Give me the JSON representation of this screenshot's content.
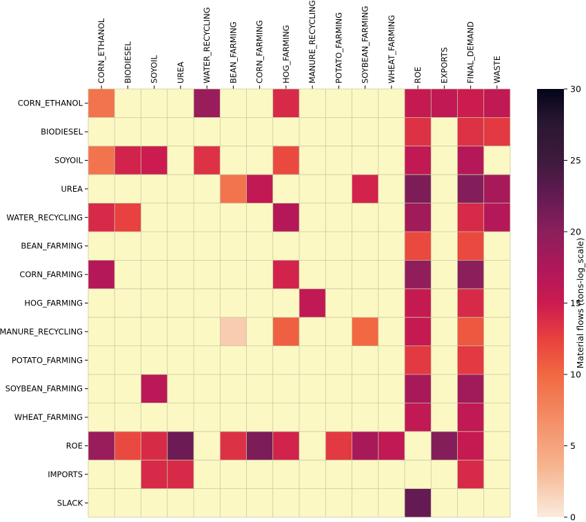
{
  "chart_data": {
    "type": "heatmap",
    "title": "",
    "xlabel": "",
    "ylabel": "",
    "columns": [
      "CORN_ETHANOL",
      "BIODIESEL",
      "SOYOIL",
      "UREA",
      "WATER_RECYCLING",
      "BEAN_FARMING",
      "CORN_FARMING",
      "HOG_FARMING",
      "MANURE_RECYCLING",
      "POTATO_FARMING",
      "SOYBEAN_FARMING",
      "WHEAT_FARMING",
      "ROE",
      "EXPORTS",
      "FINAL_DEMAND",
      "WASTE"
    ],
    "rows": [
      "CORN_ETHANOL",
      "BIODIESEL",
      "SOYOIL",
      "UREA",
      "WATER_RECYCLING",
      "BEAN_FARMING",
      "CORN_FARMING",
      "HOG_FARMING",
      "MANURE_RECYCLING",
      "POTATO_FARMING",
      "SOYBEAN_FARMING",
      "WHEAT_FARMING",
      "ROE",
      "IMPORTS",
      "SLACK"
    ],
    "values": [
      [
        9,
        null,
        null,
        null,
        19,
        null,
        null,
        14,
        null,
        null,
        null,
        null,
        15.5,
        16,
        15,
        16
      ],
      [
        null,
        null,
        null,
        null,
        null,
        null,
        null,
        null,
        null,
        null,
        null,
        null,
        13.5,
        null,
        13.5,
        13
      ],
      [
        9,
        14.5,
        15,
        null,
        13.5,
        null,
        null,
        12,
        null,
        null,
        null,
        null,
        16,
        null,
        17,
        null
      ],
      [
        null,
        null,
        null,
        null,
        null,
        9,
        16,
        null,
        null,
        null,
        14.5,
        null,
        21,
        null,
        20.5,
        18
      ],
      [
        14,
        12.5,
        null,
        null,
        null,
        null,
        null,
        17,
        null,
        null,
        null,
        null,
        18.5,
        null,
        14,
        17
      ],
      [
        null,
        null,
        null,
        null,
        null,
        null,
        null,
        null,
        null,
        null,
        null,
        null,
        12,
        null,
        12,
        null
      ],
      [
        17,
        null,
        null,
        null,
        null,
        null,
        null,
        14.5,
        null,
        null,
        null,
        null,
        19.5,
        null,
        20,
        null
      ],
      [
        null,
        null,
        null,
        null,
        null,
        null,
        null,
        null,
        16,
        null,
        null,
        null,
        15.5,
        null,
        14,
        null
      ],
      [
        null,
        null,
        null,
        null,
        null,
        2,
        null,
        10.5,
        null,
        null,
        10,
        null,
        15.5,
        null,
        11,
        null
      ],
      [
        null,
        null,
        null,
        null,
        null,
        null,
        null,
        null,
        null,
        null,
        null,
        null,
        13,
        null,
        13,
        null
      ],
      [
        null,
        null,
        16.5,
        null,
        null,
        null,
        null,
        null,
        null,
        null,
        null,
        null,
        18,
        null,
        18.5,
        null
      ],
      [
        null,
        null,
        null,
        null,
        null,
        null,
        null,
        null,
        null,
        null,
        null,
        null,
        16,
        null,
        16,
        null
      ],
      [
        19,
        12,
        14,
        22,
        null,
        13.5,
        21,
        14.5,
        null,
        13,
        18,
        16,
        null,
        20.5,
        15.5,
        null
      ],
      [
        null,
        null,
        14,
        14,
        null,
        null,
        null,
        null,
        null,
        null,
        null,
        null,
        null,
        null,
        14,
        null
      ],
      [
        null,
        null,
        null,
        null,
        null,
        null,
        null,
        null,
        null,
        null,
        null,
        null,
        22.5,
        null,
        null,
        null
      ]
    ],
    "colorbar": {
      "label": "Material flows (tons-log_scale)",
      "ticks": [
        "0",
        "5",
        "10",
        "15",
        "20",
        "25",
        "30"
      ],
      "range": [
        0,
        30
      ]
    },
    "empty_color": "#fbf8c3",
    "grid": true,
    "colormap": "rocket_r"
  }
}
